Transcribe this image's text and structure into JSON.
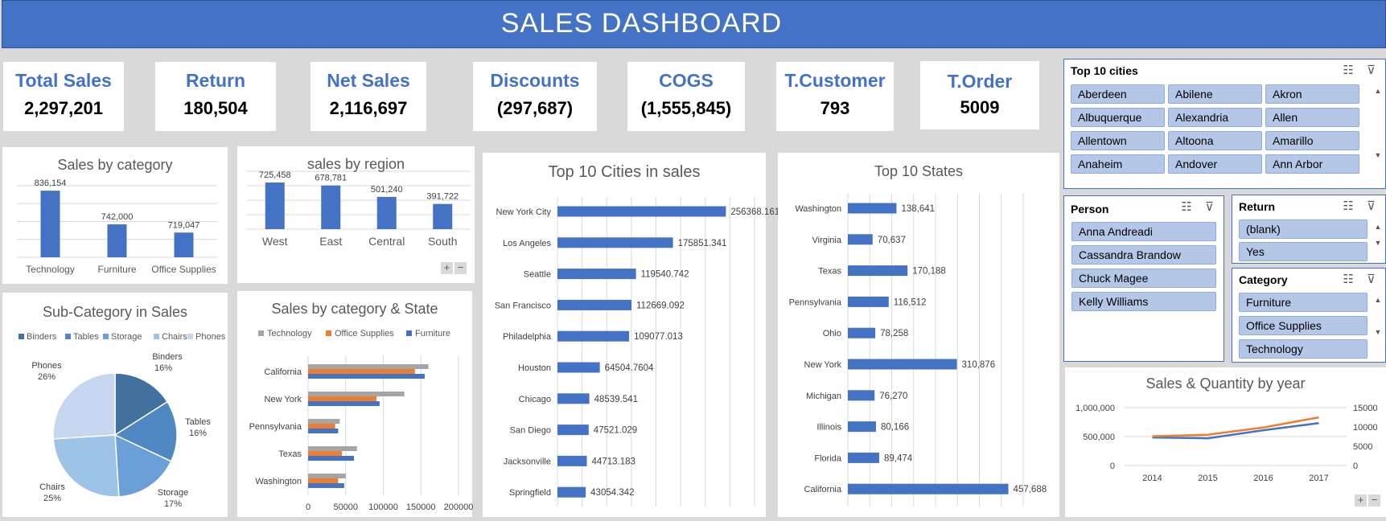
{
  "header": {
    "title": "SALES DASHBOARD"
  },
  "kpis": [
    {
      "label": "Total Sales",
      "value": "2,297,201"
    },
    {
      "label": "Return",
      "value": "180,504"
    },
    {
      "label": "Net Sales",
      "value": "2,116,697"
    },
    {
      "label": "Discounts",
      "value": "(297,687)"
    },
    {
      "label": "COGS",
      "value": "(1,555,845)"
    },
    {
      "label": "T.Customer",
      "value": "793"
    },
    {
      "label": "T.Order",
      "value": "5009"
    }
  ],
  "colors": {
    "accent": "#4472c4",
    "orange": "#ed7d31",
    "gray": "#a5a5a5",
    "chip": "#b4c7e7"
  },
  "slicers": {
    "cities": {
      "title": "Top 10 cities",
      "items": [
        "Aberdeen",
        "Abilene",
        "Akron",
        "Albuquerque",
        "Alexandria",
        "Allen",
        "Allentown",
        "Altoona",
        "Amarillo",
        "Anaheim",
        "Andover",
        "Ann Arbor"
      ]
    },
    "person": {
      "title": "Person",
      "items": [
        "Anna Andreadi",
        "Cassandra Brandow",
        "Chuck Magee",
        "Kelly Williams"
      ]
    },
    "return": {
      "title": "Return",
      "items": [
        "(blank)",
        "Yes"
      ]
    },
    "category": {
      "title": "Category",
      "items": [
        "Furniture",
        "Office Supplies",
        "Technology"
      ]
    }
  },
  "chart_data": [
    {
      "id": "sales-by-category",
      "type": "bar",
      "title": "Sales by category",
      "categories": [
        "Technology",
        "Furniture",
        "Office Supplies"
      ],
      "values": [
        836154,
        742000,
        719047
      ],
      "labels": [
        "836,154",
        "742,000",
        "719,047"
      ],
      "ylim": [
        650000,
        850000
      ],
      "grid": true
    },
    {
      "id": "sales-by-region",
      "type": "bar",
      "title": "sales by region",
      "categories": [
        "West",
        "East",
        "Central",
        "South"
      ],
      "values": [
        725458,
        678781,
        501240,
        391722
      ],
      "labels": [
        "725,458",
        "678,781",
        "501,240",
        "391,722"
      ],
      "ylim": [
        0,
        900000
      ],
      "grid": true
    },
    {
      "id": "top10-cities",
      "type": "bar",
      "orientation": "horizontal",
      "title": "Top 10 Cities in sales",
      "categories": [
        "New York City",
        "Los Angeles",
        "Seattle",
        "San Francisco",
        "Philadelphia",
        "Houston",
        "Chicago",
        "San Diego",
        "Jacksonville",
        "Springfield"
      ],
      "values": [
        256368.161,
        175851.341,
        119540.742,
        112669.092,
        109077.013,
        64504.7604,
        48539.541,
        47521.029,
        44713.183,
        43054.342
      ],
      "labels": [
        "256368.161",
        "175851.341",
        "119540.742",
        "112669.092",
        "109077.013",
        "64504.7604",
        "48539.541",
        "47521.029",
        "44713.183",
        "43054.342"
      ],
      "xlim": [
        0,
        300000
      ],
      "grid": true
    },
    {
      "id": "top10-states",
      "type": "bar",
      "orientation": "horizontal",
      "title": "Top 10 States",
      "categories": [
        "Washington",
        "Virginia",
        "Texas",
        "Pennsylvania",
        "Ohio",
        "New York",
        "Michigan",
        "Illinois",
        "Florida",
        "California"
      ],
      "values": [
        138641,
        70637,
        170188,
        116512,
        78258,
        310876,
        76270,
        80166,
        89474,
        457688
      ],
      "labels": [
        "138,641",
        "70,637",
        "170,188",
        "116,512",
        "78,258",
        "310,876",
        "76,270",
        "80,166",
        "89,474",
        "457,688"
      ],
      "xlim": [
        0,
        500000
      ],
      "grid": true
    },
    {
      "id": "sub-category",
      "type": "pie",
      "title": "Sub-Category in Sales",
      "categories": [
        "Binders",
        "Tables",
        "Storage",
        "Chairs",
        "Phones"
      ],
      "values": [
        16,
        16,
        17,
        25,
        26
      ],
      "labels": [
        "16%",
        "16%",
        "17%",
        "25%",
        "26%"
      ],
      "colors": [
        "#41719c",
        "#4e87c2",
        "#6a9fd8",
        "#9dc3e6",
        "#c5d6ee"
      ],
      "legend": "top"
    },
    {
      "id": "category-state",
      "type": "bar",
      "orientation": "horizontal",
      "title": "Sales by category & State",
      "categories": [
        "California",
        "New York",
        "Pennsylvania",
        "Texas",
        "Washington"
      ],
      "series": [
        {
          "name": "Technology",
          "values": [
            160000,
            128000,
            42000,
            65000,
            50000
          ]
        },
        {
          "name": "Office Supplies",
          "values": [
            142000,
            91000,
            36000,
            45000,
            40000
          ]
        },
        {
          "name": "Furniture",
          "values": [
            155000,
            95000,
            40000,
            61000,
            48000
          ]
        }
      ],
      "ticks": [
        "0",
        "50000",
        "100000",
        "150000",
        "200000"
      ],
      "xlim": [
        0,
        200000
      ],
      "legend": "top",
      "grid": true
    },
    {
      "id": "sales-quantity-year",
      "type": "line",
      "title": "Sales & Quantity by year",
      "x": [
        "2014",
        "2015",
        "2016",
        "2017"
      ],
      "series": [
        {
          "values": [
            484247,
            470533,
            609206,
            733215
          ],
          "axis": "left"
        },
        {
          "values": [
            7581,
            7979,
            9837,
            12476
          ],
          "axis": "right"
        }
      ],
      "yleft_ticks": [
        "1,000,000",
        "500,000",
        "0"
      ],
      "yright_ticks": [
        "15000",
        "10000",
        "5000",
        "0"
      ],
      "ylim_left": [
        0,
        1000000
      ],
      "ylim_right": [
        0,
        15000
      ],
      "grid": true
    }
  ]
}
